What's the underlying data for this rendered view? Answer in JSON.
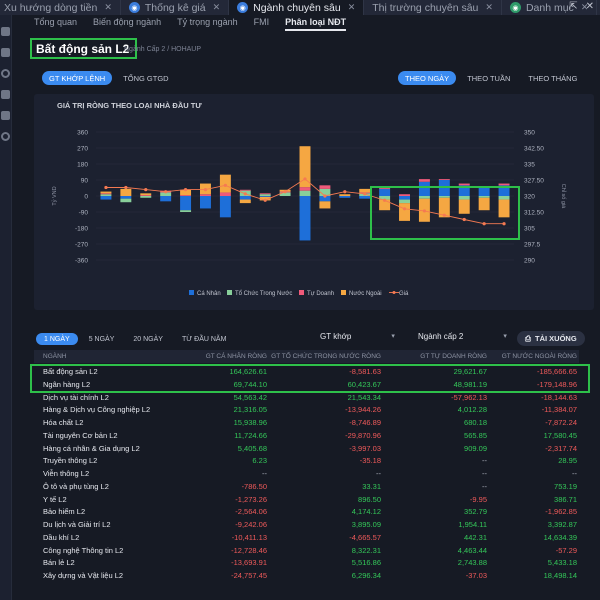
{
  "top_tabs": [
    {
      "label": "Xu hướng dòng tiền",
      "active": false
    },
    {
      "label": "Thống kê giá",
      "active": false
    },
    {
      "label": "Ngành chuyên sâu",
      "active": true
    },
    {
      "label": "Thị trường chuyên sâu",
      "active": false
    },
    {
      "label": "Danh mục",
      "active": false
    }
  ],
  "sub_tabs": [
    "Tổng quan",
    "Biến động ngành",
    "Tỷ trọng ngành",
    "FMI",
    "Phân loại NĐT"
  ],
  "title": "Bất động sản L2",
  "breadcrumb": "Ngành Cấp 2 / HOHAUP",
  "order_toggle": [
    "GT KHỚP LỆNH",
    "TỔNG GTGD"
  ],
  "period_toggle": [
    "THEO NGÀY",
    "THEO TUẦN",
    "THEO THÁNG"
  ],
  "chart_data": {
    "type": "bar",
    "title": "GIÁ TRỊ RÒNG THEO LOẠI NHÀ ĐẦU TƯ",
    "ylabel_left": "Tỷ VND",
    "ylabel_right": "Chỉ số giá",
    "y_left_ticks": [
      "360",
      "270",
      "180",
      "90",
      "0",
      "-90",
      "-180",
      "-270",
      "-360"
    ],
    "y_right_ticks": [
      "350",
      "342.50",
      "335",
      "327.50",
      "320",
      "312.50",
      "305",
      "297.5",
      "290"
    ],
    "ylim_left": [
      -360,
      360
    ],
    "ylim_right": [
      290,
      350
    ],
    "series": [
      {
        "name": "Cá Nhân",
        "color": "#1e6fd9",
        "values": [
          -20,
          -15,
          0,
          -30,
          -80,
          -70,
          -120,
          -20,
          -5,
          0,
          -250,
          -30,
          -10,
          -15,
          40,
          -20,
          80,
          90,
          60,
          45,
          60
        ]
      },
      {
        "name": "Tổ Chức Trong Nước",
        "color": "#88cf9a",
        "values": [
          10,
          -20,
          -10,
          20,
          -10,
          0,
          0,
          30,
          10,
          20,
          30,
          40,
          0,
          15,
          -20,
          -20,
          -15,
          -10,
          -20,
          -10,
          -20
        ]
      },
      {
        "name": "Tự Doanh",
        "color": "#ef5a7a",
        "values": [
          5,
          0,
          5,
          10,
          5,
          10,
          20,
          5,
          5,
          5,
          20,
          20,
          0,
          5,
          5,
          10,
          15,
          5,
          10,
          10,
          10
        ]
      },
      {
        "name": "Nước Ngoài",
        "color": "#f5a742",
        "values": [
          10,
          40,
          10,
          0,
          30,
          60,
          100,
          -20,
          -20,
          10,
          230,
          -40,
          10,
          20,
          -60,
          -100,
          -130,
          -110,
          -80,
          -70,
          -100
        ]
      }
    ],
    "price_series": {
      "name": "Giá",
      "color": "#f57a52",
      "values": [
        324,
        324,
        323,
        322,
        323,
        323,
        325,
        321,
        318,
        322,
        328,
        320,
        322,
        321,
        318,
        314,
        313,
        311,
        309,
        307,
        307
      ]
    },
    "legend": [
      "Cá Nhân",
      "Tổ Chức Trong Nước",
      "Tự Doanh",
      "Nước Ngoài",
      "Giá"
    ]
  },
  "table_controls": {
    "periods": [
      "1 NGÀY",
      "5 NGÀY",
      "20 NGÀY",
      "TỪ ĐẦU NĂM"
    ],
    "value_type": "GT khớp",
    "level": "Ngành cấp 2",
    "download": "TẢI XUỐNG"
  },
  "table": {
    "headers": [
      "NGÀNH",
      "GT CÁ NHÂN RÒNG",
      "GT TỔ CHỨC TRONG NƯỚC RÒNG",
      "GT TỰ DOANH RÒNG",
      "GT NƯỚC NGOÀI RÒNG"
    ],
    "rows": [
      [
        "Bất động sản L2",
        "164,626.61",
        "-8,581.63",
        "29,621.67",
        "-185,666.65"
      ],
      [
        "Ngân hàng L2",
        "69,744.10",
        "60,423.67",
        "48,981.19",
        "-179,148.96"
      ],
      [
        "Dịch vụ tài chính L2",
        "54,563.42",
        "21,543.34",
        "-57,962.13",
        "-18,144.63"
      ],
      [
        "Hàng & Dịch vụ Công nghiệp L2",
        "21,316.05",
        "-13,944.26",
        "4,012.28",
        "-11,384.07"
      ],
      [
        "Hóa chất L2",
        "15,938.96",
        "-8,746.89",
        "680.18",
        "-7,872.24"
      ],
      [
        "Tài nguyên Cơ bản L2",
        "11,724.66",
        "-29,870.96",
        "565.85",
        "17,580.45"
      ],
      [
        "Hàng cá nhân & Gia dụng L2",
        "5,405.68",
        "-3,997.03",
        "909.09",
        "-2,317.74"
      ],
      [
        "Truyền thông L2",
        "6.23",
        "-35.18",
        "--",
        "28.95"
      ],
      [
        "Viễn thông L2",
        "--",
        "--",
        "--",
        "--"
      ],
      [
        "Ô tô và phụ tùng L2",
        "-786.50",
        "33.31",
        "--",
        "753.19"
      ],
      [
        "Y tế L2",
        "-1,273.26",
        "896.50",
        "-9.95",
        "386.71"
      ],
      [
        "Bảo hiểm L2",
        "-2,564.06",
        "4,174.12",
        "352.79",
        "-1,962.85"
      ],
      [
        "Du lịch và Giải trí L2",
        "-9,242.06",
        "3,895.09",
        "1,954.11",
        "3,392.87"
      ],
      [
        "Dầu khí L2",
        "-10,411.13",
        "-4,665.57",
        "442.31",
        "14,634.39"
      ],
      [
        "Công nghệ Thông tin L2",
        "-12,728.46",
        "8,322.31",
        "4,463.44",
        "-57.29"
      ],
      [
        "Bán lẻ L2",
        "-13,693.91",
        "5,516.86",
        "2,743.88",
        "5,433.18"
      ],
      [
        "Xây dựng và Vật liệu L2",
        "-24,757.45",
        "6,296.34",
        "-37.03",
        "18,498.14"
      ]
    ]
  }
}
